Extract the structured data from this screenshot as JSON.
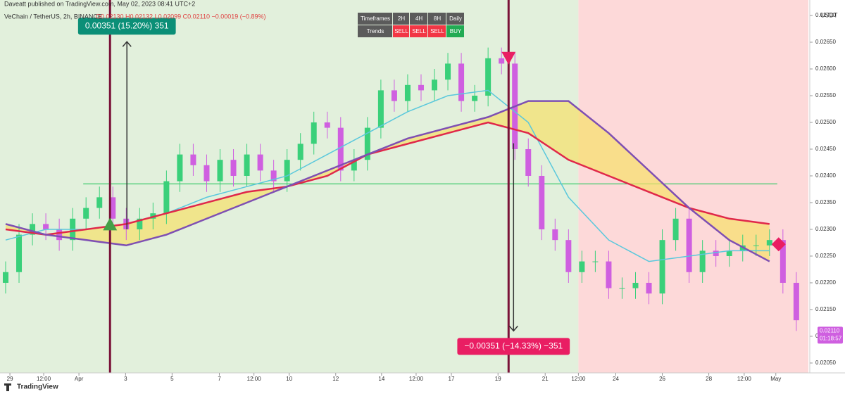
{
  "publisher_line": "Daveatt published on TradingView.com, May 02, 2023 08:41 UTC+2",
  "brand": "TradingView",
  "signal_table": {
    "header": [
      "Timeframes",
      "2H",
      "4H",
      "8H",
      "Daily"
    ],
    "row": [
      "Trends",
      "SELL",
      "SELL",
      "SELL",
      "BUY"
    ]
  },
  "chart_data": {
    "type": "candlestick",
    "title": "VeChain / TetherUS, 2h, BINANCE",
    "ohlc_legend": "O0.02130 H0.02132 L0.02099 C0.02110 −0.00019 (−0.89%)",
    "y_axis_label": "USDT",
    "up_color": "#3ad07a",
    "down_color": "#cf5fe0",
    "open": [
      0.022,
      0.0222,
      0.0229,
      0.0231,
      0.023,
      0.0228,
      0.0232,
      0.0234,
      0.0236,
      0.0232,
      0.023,
      0.0232,
      0.0233,
      0.0239,
      0.0244,
      0.0242,
      0.0239,
      0.0243,
      0.024,
      0.0244,
      0.0241,
      0.0239,
      0.0243,
      0.0246,
      0.025,
      0.0249,
      0.0241,
      0.0243,
      0.0249,
      0.0256,
      0.0254,
      0.0257,
      0.0256,
      0.0258,
      0.0261,
      0.0254,
      0.0255,
      0.0262,
      0.0261,
      0.0245,
      0.024,
      0.023,
      0.0228,
      0.0222,
      0.0224,
      0.0224,
      0.0219,
      0.0219,
      0.022,
      0.0218,
      0.0228,
      0.0232,
      0.0222,
      0.0226,
      0.0225,
      0.0226,
      0.0227,
      0.0227,
      0.0228,
      0.022
    ],
    "high": [
      0.0224,
      0.0231,
      0.0233,
      0.0233,
      0.0232,
      0.0234,
      0.0236,
      0.0238,
      0.0238,
      0.0234,
      0.0234,
      0.0235,
      0.0241,
      0.0246,
      0.0246,
      0.0244,
      0.0245,
      0.0245,
      0.0246,
      0.0246,
      0.0243,
      0.0245,
      0.0248,
      0.0252,
      0.0252,
      0.0251,
      0.0245,
      0.0251,
      0.0258,
      0.0258,
      0.0259,
      0.0259,
      0.026,
      0.0263,
      0.0263,
      0.0257,
      0.0264,
      0.0264,
      0.0263,
      0.0247,
      0.0242,
      0.0232,
      0.023,
      0.0226,
      0.0226,
      0.0226,
      0.0221,
      0.0222,
      0.0222,
      0.023,
      0.0234,
      0.0234,
      0.0228,
      0.0228,
      0.0228,
      0.0229,
      0.0229,
      0.023,
      0.023,
      0.0222
    ],
    "low": [
      0.0218,
      0.022,
      0.0227,
      0.0228,
      0.0226,
      0.0226,
      0.023,
      0.0232,
      0.023,
      0.0228,
      0.0228,
      0.023,
      0.0231,
      0.0237,
      0.024,
      0.0237,
      0.0237,
      0.0238,
      0.0238,
      0.0239,
      0.0237,
      0.0237,
      0.0241,
      0.0244,
      0.0247,
      0.0239,
      0.0239,
      0.0241,
      0.0247,
      0.0252,
      0.0252,
      0.0254,
      0.0254,
      0.0256,
      0.0252,
      0.0252,
      0.0253,
      0.0259,
      0.0243,
      0.0238,
      0.0228,
      0.0226,
      0.022,
      0.022,
      0.0222,
      0.0217,
      0.0217,
      0.0217,
      0.0216,
      0.0216,
      0.0226,
      0.022,
      0.022,
      0.0223,
      0.0223,
      0.0224,
      0.0225,
      0.0225,
      0.0218,
      0.0211
    ],
    "close": [
      0.0222,
      0.0229,
      0.0231,
      0.023,
      0.0228,
      0.0232,
      0.0234,
      0.0236,
      0.0232,
      0.023,
      0.0232,
      0.0233,
      0.0239,
      0.0244,
      0.0242,
      0.0239,
      0.0243,
      0.024,
      0.0244,
      0.0241,
      0.0239,
      0.0243,
      0.0246,
      0.025,
      0.0249,
      0.0241,
      0.0243,
      0.0249,
      0.0256,
      0.0254,
      0.0257,
      0.0256,
      0.0258,
      0.0261,
      0.0254,
      0.0255,
      0.0262,
      0.0261,
      0.0245,
      0.024,
      0.023,
      0.0228,
      0.0222,
      0.0224,
      0.0224,
      0.0219,
      0.0219,
      0.022,
      0.0218,
      0.0228,
      0.0232,
      0.0222,
      0.0226,
      0.0225,
      0.0226,
      0.0227,
      0.0227,
      0.0228,
      0.022,
      0.0213
    ],
    "lines": [
      {
        "color": "#5ac8dc",
        "x": [
          0,
          3,
          6,
          9,
          12,
          15,
          18,
          21,
          24,
          27,
          30,
          33,
          36,
          39,
          42,
          45,
          48,
          51,
          54,
          57
        ],
        "values": [
          0.0228,
          0.023,
          0.023,
          0.0231,
          0.0233,
          0.0236,
          0.0238,
          0.024,
          0.0244,
          0.0248,
          0.0252,
          0.0255,
          0.0256,
          0.025,
          0.0236,
          0.0228,
          0.0224,
          0.0225,
          0.0226,
          0.0226
        ]
      },
      {
        "color": "#e0284a",
        "x": [
          0,
          3,
          6,
          9,
          12,
          15,
          18,
          21,
          24,
          27,
          30,
          33,
          36,
          39,
          42,
          45,
          48,
          51,
          54,
          57
        ],
        "values": [
          0.023,
          0.0229,
          0.023,
          0.0231,
          0.0233,
          0.0235,
          0.0237,
          0.0238,
          0.024,
          0.0244,
          0.0246,
          0.0248,
          0.025,
          0.0248,
          0.0243,
          0.024,
          0.0237,
          0.0234,
          0.0232,
          0.0231
        ]
      },
      {
        "color": "#7e4fb3",
        "x": [
          0,
          3,
          6,
          9,
          12,
          15,
          18,
          21,
          24,
          27,
          30,
          33,
          36,
          39,
          42,
          45,
          48,
          51,
          54,
          57
        ],
        "values": [
          0.0231,
          0.0229,
          0.0228,
          0.0227,
          0.0229,
          0.0232,
          0.0235,
          0.0238,
          0.0241,
          0.0244,
          0.0247,
          0.0249,
          0.0251,
          0.0254,
          0.0254,
          0.0248,
          0.0241,
          0.0234,
          0.0228,
          0.0224
        ]
      }
    ],
    "zones": [
      {
        "from": -0.42,
        "to": 42.74,
        "color": "#e2f0dc"
      },
      {
        "from": 42.74,
        "to": 59.9,
        "color": "#fdd9d9"
      }
    ],
    "vlines": [
      7.79,
      37.53
    ],
    "hline": {
      "value": 0.02385,
      "from": 5.79,
      "to": 57.58
    },
    "measures": [
      {
        "x": 9.05,
        "from": 0.023,
        "to": 0.02651,
        "label": "0.00351 (15.20%) 351",
        "color": "#0b8f77"
      },
      {
        "x": 37.9,
        "from": 0.02461,
        "to": 0.0211,
        "label": "−0.00351 (−14.33%) −351",
        "color": "#e91e63"
      }
    ],
    "markers": [
      {
        "x": 7.79,
        "value": 0.0231,
        "shape": "up",
        "color": "#43a047"
      },
      {
        "x": 37.53,
        "value": 0.0262,
        "shape": "down",
        "color": "#e91e63"
      },
      {
        "x": 57.68,
        "value": 0.02272,
        "shape": "diamond",
        "color": "#e91e63"
      }
    ],
    "last_price": {
      "label": "0.02110",
      "value": 0.0211,
      "countdown": "01:18:57"
    },
    "xlim": [
      -0.42,
      59.9
    ],
    "ylim": [
      0.020381,
      0.027
    ],
    "xticks": [
      {
        "value": 0.32,
        "label": "29"
      },
      {
        "value": 2.84,
        "label": "12:00"
      },
      {
        "value": 5.47,
        "label": "Apr"
      },
      {
        "value": 8.95,
        "label": "3"
      },
      {
        "value": 12.42,
        "label": "5"
      },
      {
        "value": 15.95,
        "label": "7"
      },
      {
        "value": 18.53,
        "label": "12:00"
      },
      {
        "value": 21.16,
        "label": "10"
      },
      {
        "value": 24.63,
        "label": "12"
      },
      {
        "value": 28.05,
        "label": "14"
      },
      {
        "value": 30.63,
        "label": "12:00"
      },
      {
        "value": 33.26,
        "label": "17"
      },
      {
        "value": 36.74,
        "label": "19"
      },
      {
        "value": 40.26,
        "label": "21"
      },
      {
        "value": 42.74,
        "label": "12:00"
      },
      {
        "value": 45.53,
        "label": "24"
      },
      {
        "value": 49,
        "label": "26"
      },
      {
        "value": 52.47,
        "label": "28"
      },
      {
        "value": 55.11,
        "label": "12:00"
      },
      {
        "value": 57.47,
        "label": "May"
      }
    ],
    "yticks": [
      {
        "value": 0.0205,
        "label": "0.02050"
      },
      {
        "value": 0.021,
        "label": "0.02100"
      },
      {
        "value": 0.0215,
        "label": "0.02150"
      },
      {
        "value": 0.022,
        "label": "0.02200"
      },
      {
        "value": 0.0225,
        "label": "0.02250"
      },
      {
        "value": 0.023,
        "label": "0.02300"
      },
      {
        "value": 0.0235,
        "label": "0.02350"
      },
      {
        "value": 0.024,
        "label": "0.02400"
      },
      {
        "value": 0.0245,
        "label": "0.02450"
      },
      {
        "value": 0.025,
        "label": "0.02500"
      },
      {
        "value": 0.0255,
        "label": "0.02550"
      },
      {
        "value": 0.026,
        "label": "0.02600"
      },
      {
        "value": 0.0265,
        "label": "0.02650"
      },
      {
        "value": 0.027,
        "label": "0.02700"
      }
    ]
  }
}
